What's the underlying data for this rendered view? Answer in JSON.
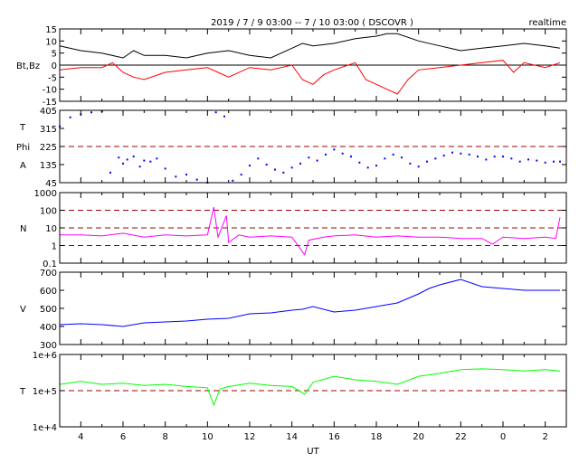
{
  "header": {
    "title": "2019 / 7 / 9   03:00 -- 7 / 10  03:00 ( DSCOVR )",
    "mode": "realtime"
  },
  "chart_data": [
    {
      "type": "line",
      "panel": "magnetic-field",
      "ylabel": "Bt,Bz",
      "ylim": [
        -15,
        15
      ],
      "yticks": [
        "15",
        "10",
        "5",
        "0",
        "-5",
        "-10",
        "-15"
      ],
      "xlim": [
        3,
        27
      ],
      "reference_lines": [
        0
      ],
      "series": [
        {
          "name": "",
          "color": "#000000",
          "x": [
            3.0,
            4.0,
            5.0,
            6.0,
            6.5,
            7.0,
            8.0,
            9.0,
            10.0,
            11.0,
            12.0,
            13.0,
            14.0,
            14.5,
            15.0,
            16.0,
            17.0,
            18.0,
            18.5,
            19.0,
            20.0,
            21.0,
            22.0,
            23.0,
            24.0,
            25.0,
            26.0,
            26.7
          ],
          "y": [
            8,
            6,
            5,
            3,
            6,
            4,
            4,
            3,
            5,
            6,
            4,
            3,
            7,
            9,
            8,
            9,
            11,
            12,
            13,
            13,
            10,
            8,
            6,
            7,
            8,
            9,
            8,
            7
          ]
        },
        {
          "name": "",
          "color": "#ff0000",
          "x": [
            3.0,
            4.0,
            5.0,
            5.5,
            6.0,
            6.5,
            7.0,
            8.0,
            9.0,
            10.0,
            10.5,
            11.0,
            12.0,
            13.0,
            14.0,
            14.5,
            15.0,
            15.5,
            16.0,
            17.0,
            17.5,
            18.0,
            18.5,
            19.0,
            19.5,
            20.0,
            21.0,
            22.0,
            23.0,
            24.0,
            24.5,
            25.0,
            26.0,
            26.7
          ],
          "y": [
            -2,
            -1,
            -1,
            1,
            -3,
            -5,
            -6,
            -3,
            -2,
            -1,
            -3,
            -5,
            -1,
            -2,
            0,
            -6,
            -8,
            -4,
            -2,
            1,
            -6,
            -8,
            -10,
            -12,
            -6,
            -2,
            -1,
            0,
            1,
            2,
            -3,
            1,
            -1,
            1
          ]
        }
      ]
    },
    {
      "type": "scatter",
      "panel": "phi-angle",
      "ylabel_lines": [
        "T",
        "Phi",
        "A"
      ],
      "ylim": [
        45,
        405
      ],
      "yticks": [
        "405",
        "315",
        "225",
        "135",
        "45"
      ],
      "xlim": [
        3,
        27
      ],
      "reference_lines": [
        225
      ],
      "series": [
        {
          "name": "",
          "color": "#0000ff",
          "x": [
            3.0,
            3.5,
            4.0,
            4.5,
            5.0,
            5.4,
            5.8,
            6.0,
            6.2,
            6.5,
            6.8,
            7.0,
            7.3,
            7.6,
            8.0,
            8.5,
            9.0,
            9.5,
            10.0,
            10.4,
            10.8,
            11.2,
            11.6,
            12.0,
            12.4,
            12.8,
            13.2,
            13.6,
            14.0,
            14.4,
            14.8,
            15.2,
            15.6,
            16.0,
            16.4,
            16.8,
            17.2,
            17.6,
            18.0,
            18.4,
            18.8,
            19.2,
            19.6,
            20.0,
            20.4,
            20.8,
            21.2,
            21.6,
            22.0,
            22.4,
            22.8,
            23.2,
            23.6,
            24.0,
            24.4,
            24.8,
            25.2,
            25.6,
            26.0,
            26.4,
            26.7
          ],
          "y": [
            325,
            370,
            385,
            395,
            400,
            95,
            170,
            140,
            160,
            175,
            125,
            155,
            150,
            165,
            115,
            75,
            85,
            60,
            45,
            395,
            375,
            55,
            85,
            130,
            165,
            135,
            110,
            95,
            120,
            140,
            170,
            155,
            185,
            210,
            190,
            175,
            145,
            120,
            130,
            165,
            185,
            170,
            140,
            125,
            150,
            165,
            180,
            195,
            190,
            185,
            175,
            160,
            175,
            175,
            165,
            150,
            160,
            155,
            145,
            150,
            150
          ]
        }
      ]
    },
    {
      "type": "line",
      "panel": "density",
      "ylabel": "N",
      "yscale": "log",
      "ylim": [
        0.1,
        1000
      ],
      "yticks": [
        "1000",
        "100",
        "10",
        "1",
        "0.1"
      ],
      "xlim": [
        3,
        27
      ],
      "reference_lines": [
        100,
        10,
        1
      ],
      "series": [
        {
          "name": "",
          "color": "#ff00ff",
          "x": [
            3.0,
            4.0,
            5.0,
            6.0,
            7.0,
            8.0,
            9.0,
            10.0,
            10.3,
            10.5,
            10.9,
            11.0,
            11.5,
            12.0,
            13.0,
            14.0,
            14.6,
            14.8,
            15.5,
            16.0,
            17.0,
            18.0,
            19.0,
            20.0,
            21.0,
            22.0,
            23.0,
            23.5,
            24.0,
            25.0,
            26.0,
            26.5,
            26.7
          ],
          "y": [
            4,
            4,
            3.5,
            5,
            3,
            4,
            3.5,
            4,
            150,
            3,
            50,
            1.5,
            4,
            3,
            3.5,
            3,
            0.3,
            2,
            3,
            3.5,
            4,
            3,
            3.5,
            3,
            3,
            2.5,
            2.5,
            1.2,
            3,
            2.5,
            3,
            2.5,
            40
          ]
        }
      ]
    },
    {
      "type": "line",
      "panel": "velocity",
      "ylabel": "V",
      "ylim": [
        300,
        700
      ],
      "yticks": [
        "700",
        "600",
        "500",
        "400",
        "300"
      ],
      "xlim": [
        3,
        27
      ],
      "series": [
        {
          "name": "",
          "color": "#0000ff",
          "x": [
            3.0,
            4.0,
            5.0,
            6.0,
            7.0,
            8.0,
            9.0,
            10.0,
            11.0,
            12.0,
            13.0,
            14.0,
            14.5,
            15.0,
            16.0,
            17.0,
            18.0,
            19.0,
            20.0,
            20.5,
            21.0,
            22.0,
            23.0,
            24.0,
            25.0,
            26.0,
            26.7
          ],
          "y": [
            410,
            415,
            410,
            400,
            420,
            425,
            430,
            440,
            445,
            470,
            475,
            490,
            495,
            510,
            480,
            490,
            510,
            530,
            580,
            610,
            630,
            660,
            620,
            610,
            600,
            600,
            600
          ]
        }
      ]
    },
    {
      "type": "line",
      "panel": "temperature",
      "ylabel": "T",
      "yscale": "log",
      "ylim": [
        10000,
        1000000
      ],
      "yticks": [
        "1e+6",
        "1e+5",
        "1e+4"
      ],
      "xlim": [
        3,
        27
      ],
      "xticks": [
        "4",
        "6",
        "8",
        "10",
        "12",
        "14",
        "16",
        "18",
        "20",
        "22",
        "0",
        "2"
      ],
      "xlabel": "UT",
      "reference_lines": [
        100000
      ],
      "series": [
        {
          "name": "",
          "color": "#00ff00",
          "x": [
            3.0,
            4.0,
            5.0,
            6.0,
            7.0,
            8.0,
            9.0,
            10.0,
            10.3,
            10.6,
            11.0,
            12.0,
            13.0,
            14.0,
            14.6,
            15.0,
            16.0,
            17.0,
            18.0,
            19.0,
            20.0,
            21.0,
            22.0,
            23.0,
            24.0,
            25.0,
            26.0,
            26.7
          ],
          "y": [
            150000,
            180000,
            150000,
            160000,
            140000,
            150000,
            130000,
            120000,
            40000,
            110000,
            130000,
            160000,
            140000,
            130000,
            80000,
            170000,
            250000,
            200000,
            180000,
            150000,
            250000,
            300000,
            380000,
            400000,
            380000,
            350000,
            380000,
            350000
          ]
        }
      ]
    }
  ]
}
